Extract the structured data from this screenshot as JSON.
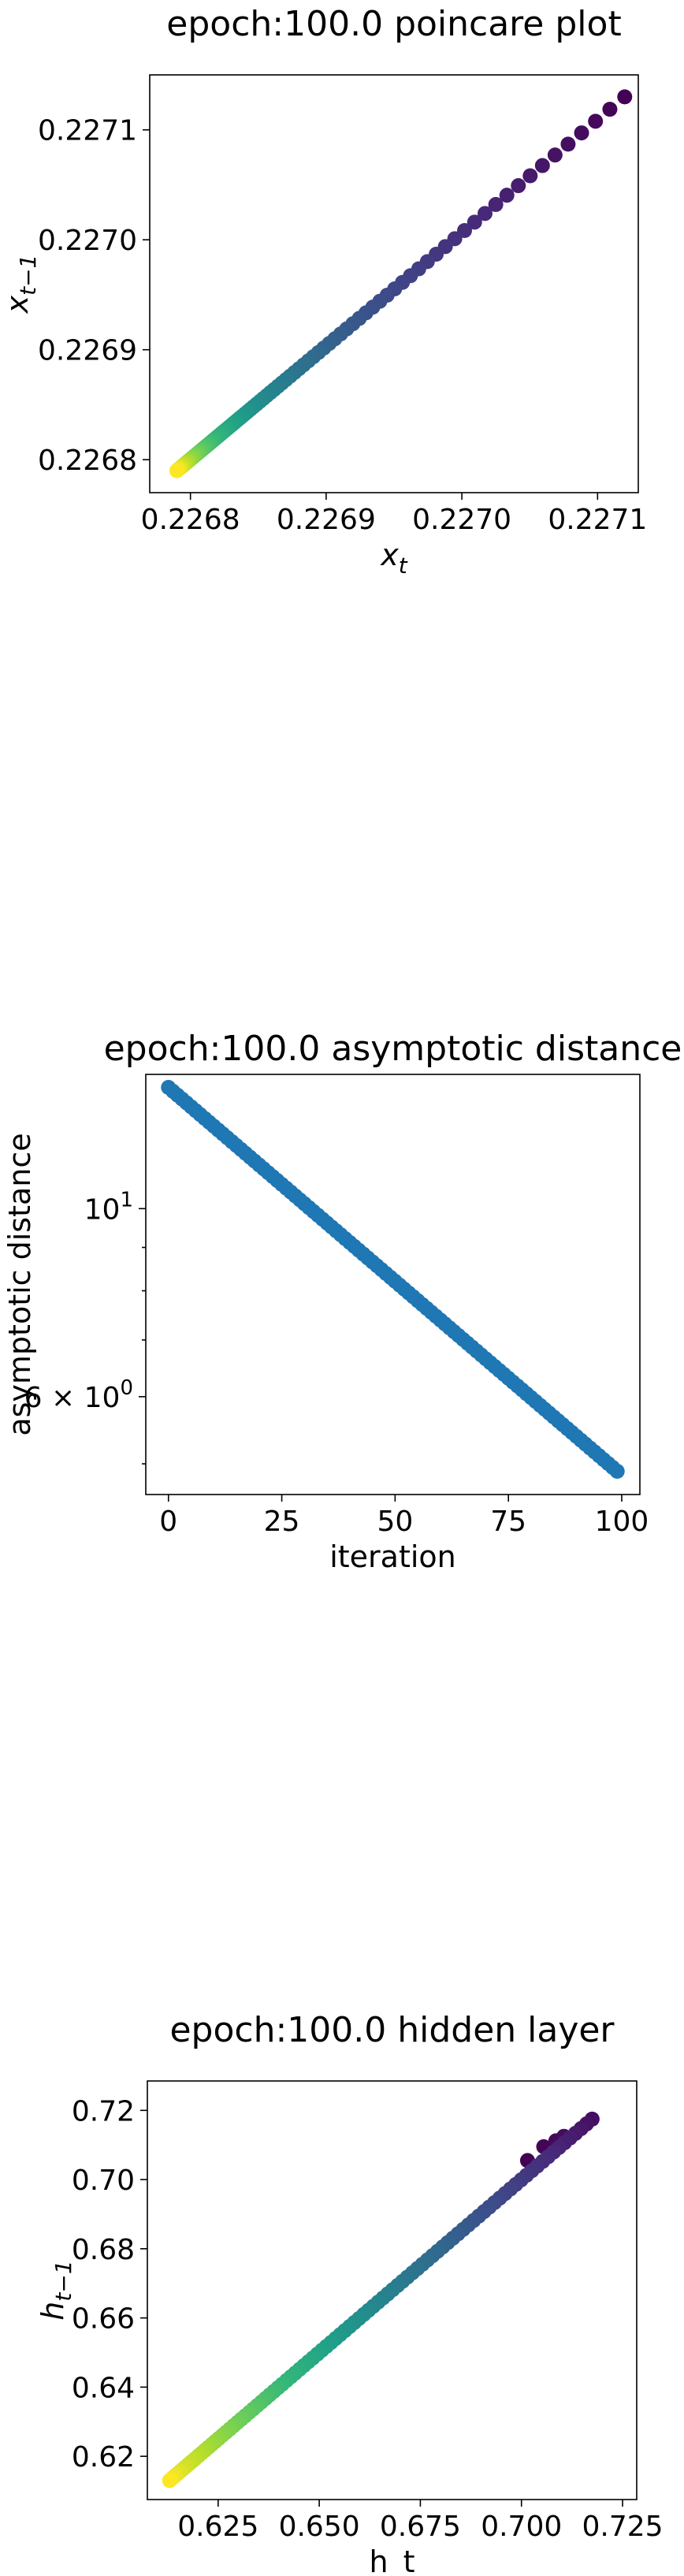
{
  "chart_data": [
    {
      "type": "scatter",
      "title": "epoch:100.0 poincare plot",
      "xlabel": "x_t",
      "ylabel": "x_{t-1}",
      "xlim": [
        0.22677,
        0.22713
      ],
      "ylim": [
        0.22677,
        0.22715
      ],
      "xticks": [
        0.2268,
        0.2269,
        0.227,
        0.2271
      ],
      "xtick_labels": [
        "0.2268",
        "0.2269",
        "0.2270",
        "0.2271"
      ],
      "yticks": [
        0.2268,
        0.2269,
        0.227,
        0.2271
      ],
      "ytick_labels": [
        "0.2268",
        "0.2269",
        "0.2270",
        "0.2271"
      ],
      "colormap": "viridis",
      "color_order": "early points purple, late points yellow",
      "grid": false,
      "points_count": 100,
      "x_range": [
        0.22679,
        0.22712
      ],
      "y_range": [
        0.22679,
        0.22713
      ]
    },
    {
      "type": "scatter",
      "title": "epoch:100.0 asymptotic distance",
      "xlabel": "iteration",
      "ylabel": "asymptotic distance",
      "yscale": "log",
      "xlim": [
        -5,
        104
      ],
      "ylim": [
        4.6,
        14.4
      ],
      "xticks": [
        0,
        25,
        50,
        75,
        100
      ],
      "xtick_labels": [
        "0",
        "25",
        "50",
        "75",
        "100"
      ],
      "yticks": [
        10,
        6
      ],
      "ytick_labels": [
        "10^1",
        "6 × 10^0"
      ],
      "color": "#1f77b4",
      "grid": false,
      "points_count": 100,
      "y_start": 13.9,
      "y_end": 4.9
    },
    {
      "type": "scatter",
      "title": "epoch:100.0 hidden layer",
      "xlabel": "h_t",
      "ylabel": "h_{t-1}",
      "xlim": [
        0.6075,
        0.7285
      ],
      "ylim": [
        0.6075,
        0.7285
      ],
      "xticks": [
        0.625,
        0.65,
        0.675,
        0.7,
        0.725
      ],
      "xtick_labels": [
        "0.625",
        "0.650",
        "0.675",
        "0.700",
        "0.725"
      ],
      "yticks": [
        0.62,
        0.64,
        0.66,
        0.68,
        0.7,
        0.72
      ],
      "ytick_labels": [
        "0.62",
        "0.64",
        "0.66",
        "0.68",
        "0.70",
        "0.72"
      ],
      "colormap": "viridis",
      "color_order": "early points purple, late points yellow",
      "grid": false,
      "points_count": 100,
      "x_range": [
        0.613,
        0.723
      ],
      "y_range": [
        0.613,
        0.723
      ]
    }
  ]
}
